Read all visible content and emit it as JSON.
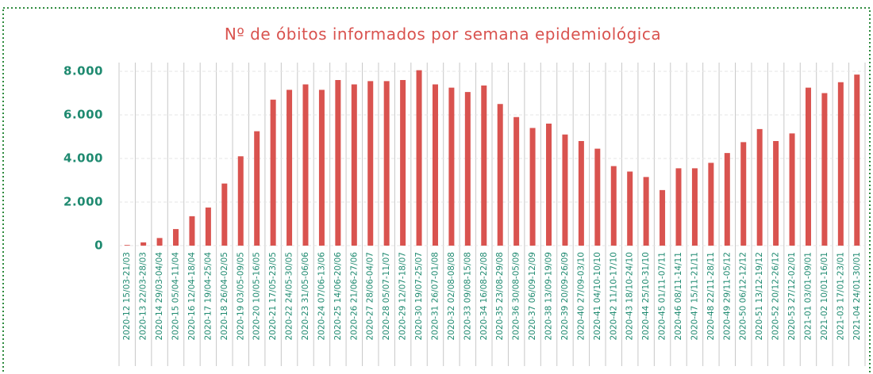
{
  "chart_data": {
    "type": "bar",
    "title": "Nº de óbitos informados por semana epidemiológica",
    "categories": [
      "2020-12 15/03-21/03",
      "2020-13 22/03-28/03",
      "2020-14 29/03-04/04",
      "2020-15 05/04-11/04",
      "2020-16 12/04-18/04",
      "2020-17 19/04-25/04",
      "2020-18 26/04-02/05",
      "2020-19 03/05-09/05",
      "2020-20 10/05-16/05",
      "2020-21 17/05-23/05",
      "2020-22 24/05-30/05",
      "2020-23 31/05-06/06",
      "2020-24 07/06-13/06",
      "2020-25 14/06-20/06",
      "2020-26 21/06-27/06",
      "2020-27 28/06-04/07",
      "2020-28 05/07-11/07",
      "2020-29 12/07-18/07",
      "2020-30 19/07-25/07",
      "2020-31 26/07-01/08",
      "2020-32 02/08-08/08",
      "2020-33 09/08-15/08",
      "2020-34 16/08-22/08",
      "2020-35 23/08-29/08",
      "2020-36 30/08-05/09",
      "2020-37 06/09-12/09",
      "2020-38 13/09-19/09",
      "2020-39 20/09-26/09",
      "2020-40 27/09-03/10",
      "2020-41 04/10-10/10",
      "2020-42 11/10-17/10",
      "2020-43 18/10-24/10",
      "2020-44 25/10-31/10",
      "2020-45 01/11-07/11",
      "2020-46 08/11-14/11",
      "2020-47 15/11-21/11",
      "2020-48 22/11-28/11",
      "2020-49 29/11-05/12",
      "2020-50 06/12-12/12",
      "2020-51 13/12-19/12",
      "2020-52 20/12-26/12",
      "2020-53 27/12-02/01",
      "2021-01 03/01-09/01",
      "2021-02 10/01-16/01",
      "2021-03 17/01-23/01",
      "2021-04 24/01-30/01"
    ],
    "values": [
      30,
      150,
      350,
      760,
      1350,
      1750,
      2850,
      4100,
      5250,
      6700,
      7150,
      7400,
      7150,
      7600,
      7400,
      7550,
      7550,
      7600,
      8050,
      7400,
      7250,
      7050,
      7350,
      6500,
      5900,
      5400,
      5600,
      5100,
      4800,
      4450,
      3650,
      3400,
      3150,
      2550,
      3550,
      3550,
      3800,
      4250,
      4750,
      5350,
      4800,
      5150,
      7250,
      7000,
      7500,
      7850
    ],
    "color": "#d9534f",
    "ylim": [
      0,
      8400
    ],
    "yticks": [
      0,
      {
        "value": 2000,
        "label": "2.000"
      },
      {
        "value": 4000,
        "label": "4.000"
      },
      {
        "value": 6000,
        "label": "6.000"
      },
      {
        "value": 8000,
        "label": "8.000"
      }
    ],
    "grid": true
  }
}
